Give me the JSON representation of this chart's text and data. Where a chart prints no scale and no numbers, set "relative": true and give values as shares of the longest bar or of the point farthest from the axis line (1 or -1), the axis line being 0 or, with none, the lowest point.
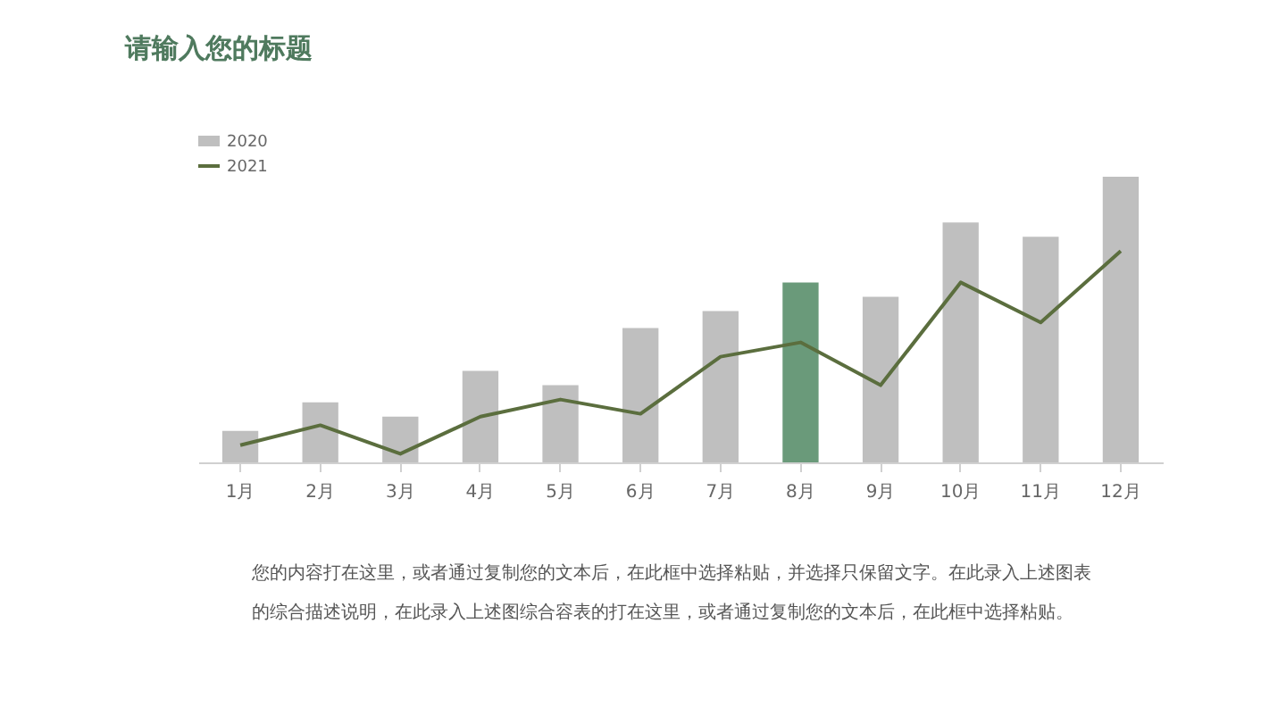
{
  "chart_data": {
    "type": "bar",
    "title": "请输入您的标题",
    "relative": true,
    "categories": [
      "1月",
      "2月",
      "3月",
      "4月",
      "5月",
      "6月",
      "7月",
      "8月",
      "9月",
      "10月",
      "11月",
      "12月"
    ],
    "series": [
      {
        "name": "2020",
        "color": "#bfbfbf",
        "colors": [
          "#bfbfbf",
          "#bfbfbf",
          "#bfbfbf",
          "#bfbfbf",
          "#bfbfbf",
          "#bfbfbf",
          "#bfbfbf",
          "#6a9a7a",
          "#bfbfbf",
          "#bfbfbf",
          "#bfbfbf",
          "#bfbfbf"
        ],
        "values": [
          0.11,
          0.21,
          0.16,
          0.32,
          0.27,
          0.47,
          0.53,
          0.63,
          0.58,
          0.84,
          0.79,
          1.0
        ]
      },
      {
        "name": "2021",
        "type": "line",
        "color": "#5b6e3e",
        "values": [
          0.06,
          0.13,
          0.03,
          0.16,
          0.22,
          0.17,
          0.37,
          0.42,
          0.27,
          0.63,
          0.49,
          0.74
        ]
      }
    ],
    "legend": "top left",
    "grid": false,
    "marker": "none",
    "line_style": "solid",
    "annotations": [
      "您的内容打在这里，或者通过复制您的文本后，在此框中选择粘贴，并选择只保留文字。在此录入上述图表",
      "的综合描述说明，在此录入上述图综合容表的打在这里，或者通过复制您的文本后，在此框中选择粘贴。"
    ]
  }
}
